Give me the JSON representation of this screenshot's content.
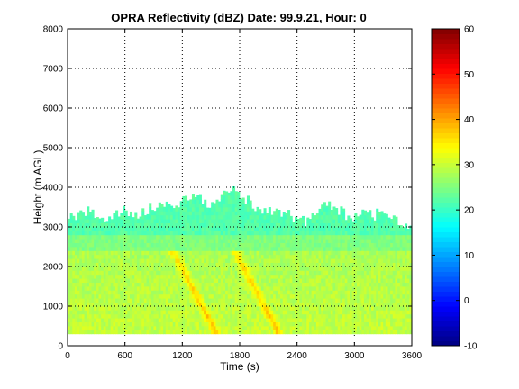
{
  "chart_data": {
    "type": "heatmap",
    "title": "OPRA Reflectivity (dBZ)  Date: 99.9.21, Hour: 0",
    "xlabel": "Time (s)",
    "ylabel": "Height (m AGL)",
    "xlim": [
      0,
      3600
    ],
    "ylim": [
      0,
      8000
    ],
    "xticks": [
      0,
      600,
      1200,
      1800,
      2400,
      3000,
      3600
    ],
    "yticks": [
      0,
      1000,
      2000,
      3000,
      4000,
      5000,
      6000,
      7000,
      8000
    ],
    "grid": true,
    "colormap": "jet",
    "colorbar": {
      "range": [
        -10,
        60
      ],
      "ticks": [
        -10,
        0,
        10,
        20,
        30,
        40,
        50,
        60
      ]
    },
    "echo": {
      "base_height": 300,
      "main_layer_top": 2800,
      "main_layer_dbz": 30,
      "upper_layer_dbz": 22,
      "peak_dbz": 38,
      "fall_streak_starts_s": [
        1100,
        1750
      ],
      "echo_top_profile": {
        "time_s": [
          0,
          100,
          200,
          300,
          400,
          500,
          600,
          700,
          800,
          900,
          1000,
          1100,
          1200,
          1300,
          1400,
          1500,
          1600,
          1700,
          1800,
          1900,
          2000,
          2100,
          2200,
          2300,
          2400,
          2500,
          2600,
          2700,
          2800,
          2900,
          3000,
          3100,
          3200,
          3300,
          3400,
          3500,
          3600
        ],
        "top_height_m": [
          3300,
          3200,
          3400,
          3300,
          3200,
          3300,
          3400,
          3300,
          3400,
          3500,
          3600,
          3400,
          3700,
          3800,
          3700,
          3500,
          3700,
          4000,
          3900,
          3600,
          3400,
          3500,
          3300,
          3300,
          3200,
          3100,
          3400,
          3600,
          3500,
          3300,
          3200,
          3400,
          3300,
          3400,
          3300,
          3000,
          3000
        ]
      }
    }
  }
}
